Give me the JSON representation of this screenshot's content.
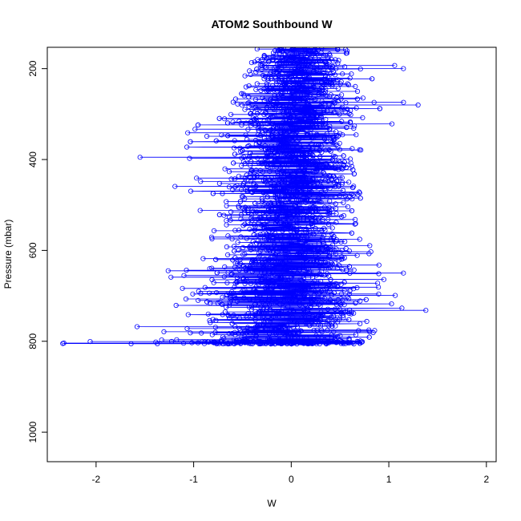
{
  "chart_data": {
    "type": "scatter",
    "title": "ATOM2 Southbound W",
    "xlabel": "W",
    "ylabel": "Pressure (mbar)",
    "xlim": [
      -2.5,
      2.1
    ],
    "ylim": [
      1065,
      153
    ],
    "y_reversed": true,
    "x_ticks": [
      -2,
      -1,
      0,
      1,
      2
    ],
    "x_tick_labels": [
      "-2",
      "-1",
      "0",
      "1",
      "2"
    ],
    "y_ticks": [
      200,
      400,
      600,
      800,
      1000
    ],
    "y_tick_labels": [
      "200",
      "400",
      "600",
      "800",
      "1000"
    ],
    "grid": false,
    "legend": "none",
    "marker": "open-circle",
    "connected": true,
    "series": [
      {
        "color": "#0000FF",
        "envelope": [
          {
            "pressure": 155,
            "w_min": -0.35,
            "w_max": 0.9,
            "w_center": 0.1
          },
          {
            "pressure": 200,
            "w_min": -0.55,
            "w_max": 1.15,
            "w_center": 0.1
          },
          {
            "pressure": 280,
            "w_min": -0.85,
            "w_max": 1.3,
            "w_center": 0.05
          },
          {
            "pressure": 350,
            "w_min": -1.15,
            "w_max": 0.9,
            "w_center": 0.0
          },
          {
            "pressure": 400,
            "w_min": -1.5,
            "w_max": 0.6,
            "w_center": 0.0
          },
          {
            "pressure": 470,
            "w_min": -1.3,
            "w_max": 0.7,
            "w_center": 0.0
          },
          {
            "pressure": 550,
            "w_min": -1.25,
            "w_max": 0.75,
            "w_center": 0.0
          },
          {
            "pressure": 620,
            "w_min": -1.25,
            "w_max": 1.0,
            "w_center": 0.0
          },
          {
            "pressure": 700,
            "w_min": -1.6,
            "w_max": 1.1,
            "w_center": -0.05
          },
          {
            "pressure": 735,
            "w_min": -1.6,
            "w_max": 1.4,
            "w_center": -0.05
          },
          {
            "pressure": 770,
            "w_min": -1.6,
            "w_max": 0.95,
            "w_center": -0.05
          },
          {
            "pressure": 805,
            "w_min": -2.35,
            "w_max": 0.7,
            "w_center": -0.1
          }
        ],
        "notable_points": [
          {
            "w": -2.33,
            "pressure": 804
          },
          {
            "w": -1.55,
            "pressure": 395
          },
          {
            "w": 1.38,
            "pressure": 732
          },
          {
            "w": 1.3,
            "pressure": 280
          },
          {
            "w": 1.15,
            "pressure": 650
          },
          {
            "w": 1.15,
            "pressure": 200
          },
          {
            "w": -1.58,
            "pressure": 768
          }
        ]
      }
    ]
  }
}
